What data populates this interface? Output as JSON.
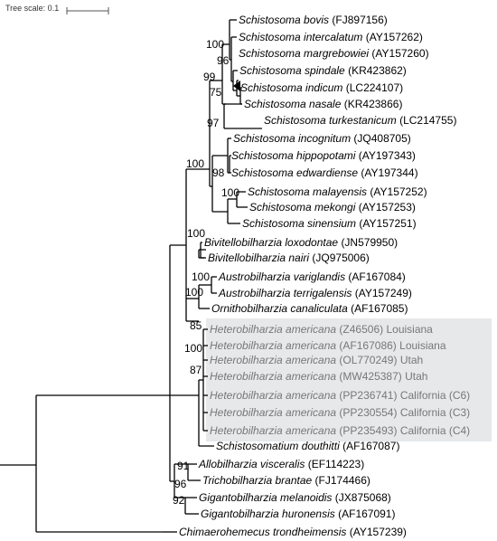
{
  "tree_scale": {
    "label": "Tree scale: 0.1"
  },
  "taxa": [
    {
      "id": "t1",
      "species": "Schistosoma bovis",
      "accession": "(FJ897156)",
      "location": "",
      "highlight": false
    },
    {
      "id": "t2",
      "species": "Schistosoma intercalatum",
      "accession": "(AY157262)",
      "location": "",
      "highlight": false
    },
    {
      "id": "t3",
      "species": "Schistosoma margrebowiei",
      "accession": "(AY157260)",
      "location": "",
      "highlight": false
    },
    {
      "id": "t4",
      "species": "Schistosoma spindale",
      "accession": "(KR423862)",
      "location": "",
      "highlight": false
    },
    {
      "id": "t5",
      "species": "Schistosoma indicum",
      "accession": "(LC224107)",
      "location": "",
      "highlight": false
    },
    {
      "id": "t6",
      "species": "Schistosoma nasale",
      "accession": "(KR423866)",
      "location": "",
      "highlight": false
    },
    {
      "id": "t7",
      "species": "Schistosoma turkestanicum",
      "accession": "(LC214755)",
      "location": "",
      "highlight": false
    },
    {
      "id": "t8",
      "species": "Schistosoma incognitum",
      "accession": "(JQ408705)",
      "location": "",
      "highlight": false
    },
    {
      "id": "t9",
      "species": "Schistosoma hippopotami",
      "accession": "(AY197343)",
      "location": "",
      "highlight": false
    },
    {
      "id": "t10",
      "species": "Schistosoma edwardiense",
      "accession": "(AY197344)",
      "location": "",
      "highlight": false
    },
    {
      "id": "t11",
      "species": "Schistosoma malayensis",
      "accession": "(AY157252)",
      "location": "",
      "highlight": false
    },
    {
      "id": "t12",
      "species": "Schistosoma mekongi",
      "accession": "(AY157253)",
      "location": "",
      "highlight": false
    },
    {
      "id": "t13",
      "species": "Schistosoma sinensium",
      "accession": "(AY157251)",
      "location": "",
      "highlight": false
    },
    {
      "id": "t14",
      "species": "Bivitellobilharzia loxodontae",
      "accession": "(JN579950)",
      "location": "",
      "highlight": false
    },
    {
      "id": "t15",
      "species": "Bivitellobilharzia nairi",
      "accession": "(JQ975006)",
      "location": "",
      "highlight": false
    },
    {
      "id": "t16",
      "species": "Austrobilharzia variglandis",
      "accession": "(AF167084)",
      "location": "",
      "highlight": false
    },
    {
      "id": "t17",
      "species": "Austrobilharzia terrigalensis",
      "accession": "(AY157249)",
      "location": "",
      "highlight": false
    },
    {
      "id": "t18",
      "species": "Ornithobilharzia canaliculata",
      "accession": "(AF167085)",
      "location": "",
      "highlight": false
    },
    {
      "id": "t19",
      "species": "Heterobilharzia americana",
      "accession": "(Z46506)",
      "location": "Louisiana",
      "highlight": true
    },
    {
      "id": "t20",
      "species": "Heterobilharzia americana",
      "accession": "(AF167086)",
      "location": "Louisiana",
      "highlight": true
    },
    {
      "id": "t21",
      "species": "Heterobilharzia americana",
      "accession": "(OL770249)",
      "location": "Utah",
      "highlight": true
    },
    {
      "id": "t22",
      "species": "Heterobilharzia americana",
      "accession": "(MW425387)",
      "location": "Utah",
      "highlight": true
    },
    {
      "id": "t23",
      "species": "Heterobilharzia americana",
      "accession": "(PP236741)",
      "location": "California (C6)",
      "highlight": true
    },
    {
      "id": "t24",
      "species": "Heterobilharzia americana",
      "accession": "(PP230554)",
      "location": "California (C3)",
      "highlight": true
    },
    {
      "id": "t25",
      "species": "Heterobilharzia americana",
      "accession": "(PP235493)",
      "location": "California (C4)",
      "highlight": true
    },
    {
      "id": "t26",
      "species": "Schistosomatium douthitti",
      "accession": "(AF167087)",
      "location": "",
      "highlight": false
    },
    {
      "id": "t27",
      "species": "Allobilharzia visceralis",
      "accession": "(EF114223)",
      "location": "",
      "highlight": false
    },
    {
      "id": "t28",
      "species": "Trichobilharzia brantae",
      "accession": "(FJ174466)",
      "location": "",
      "highlight": false
    },
    {
      "id": "t29",
      "species": "Gigantobilharzia melanoidis",
      "accession": "(JX875068)",
      "location": "",
      "highlight": false
    },
    {
      "id": "t30",
      "species": "Gigantobilharzia huronensis",
      "accession": "(AF167091)",
      "location": "",
      "highlight": false
    },
    {
      "id": "t31",
      "species": "Chimaerohemecus trondheimensis",
      "accession": "(AY157239)",
      "location": "",
      "highlight": false
    }
  ],
  "bootstrap": [
    {
      "id": "b100a",
      "value": "100"
    },
    {
      "id": "b96",
      "value": "96"
    },
    {
      "id": "b99",
      "value": "99"
    },
    {
      "id": "b75",
      "value": "75"
    },
    {
      "id": "b97",
      "value": "97"
    },
    {
      "id": "b100b",
      "value": "100"
    },
    {
      "id": "b98",
      "value": "98"
    },
    {
      "id": "b100c",
      "value": "100"
    },
    {
      "id": "b100d",
      "value": "100"
    },
    {
      "id": "b100e",
      "value": "100"
    },
    {
      "id": "b100f",
      "value": "100"
    },
    {
      "id": "b85",
      "value": "85"
    },
    {
      "id": "b100g",
      "value": "100"
    },
    {
      "id": "b87",
      "value": "87"
    },
    {
      "id": "b91",
      "value": "91"
    },
    {
      "id": "b96b",
      "value": "96"
    },
    {
      "id": "b92",
      "value": "92"
    }
  ],
  "colors": {
    "highlight_box": "#e6e8ea",
    "highlight_text": "#777777",
    "branch": "#000000"
  }
}
